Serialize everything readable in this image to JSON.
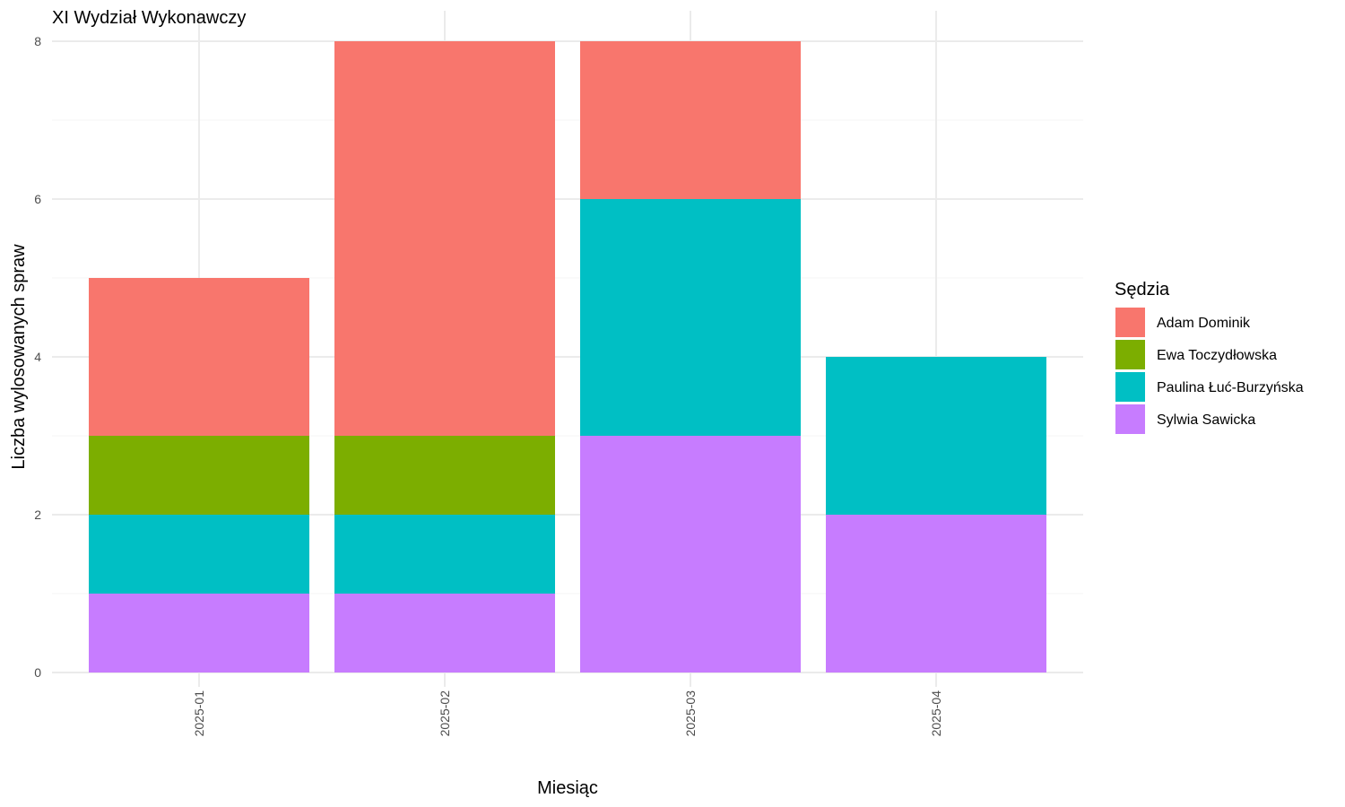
{
  "chart_data": {
    "type": "bar",
    "stacked": true,
    "title": "XI Wydział Wykonawczy",
    "xlabel": "Miesiąc",
    "ylabel": "Liczba wylosowanych spraw",
    "categories": [
      "2025-01",
      "2025-02",
      "2025-03",
      "2025-04"
    ],
    "ylim": [
      0,
      8
    ],
    "yticks": [
      0,
      2,
      4,
      6,
      8
    ],
    "grid": true,
    "legend": {
      "title": "Sędzia",
      "position": "right"
    },
    "series": [
      {
        "name": "Adam Dominik",
        "color": "#F8766D",
        "values": [
          2,
          5,
          2,
          0
        ]
      },
      {
        "name": "Ewa Toczydłowska",
        "color": "#7CAE00",
        "values": [
          1,
          1,
          0,
          0
        ]
      },
      {
        "name": "Paulina Łuć-Burzyńska",
        "color": "#00BFC4",
        "values": [
          1,
          1,
          3,
          2
        ]
      },
      {
        "name": "Sylwia Sawicka",
        "color": "#C77CFF",
        "values": [
          1,
          1,
          3,
          2
        ]
      }
    ]
  }
}
